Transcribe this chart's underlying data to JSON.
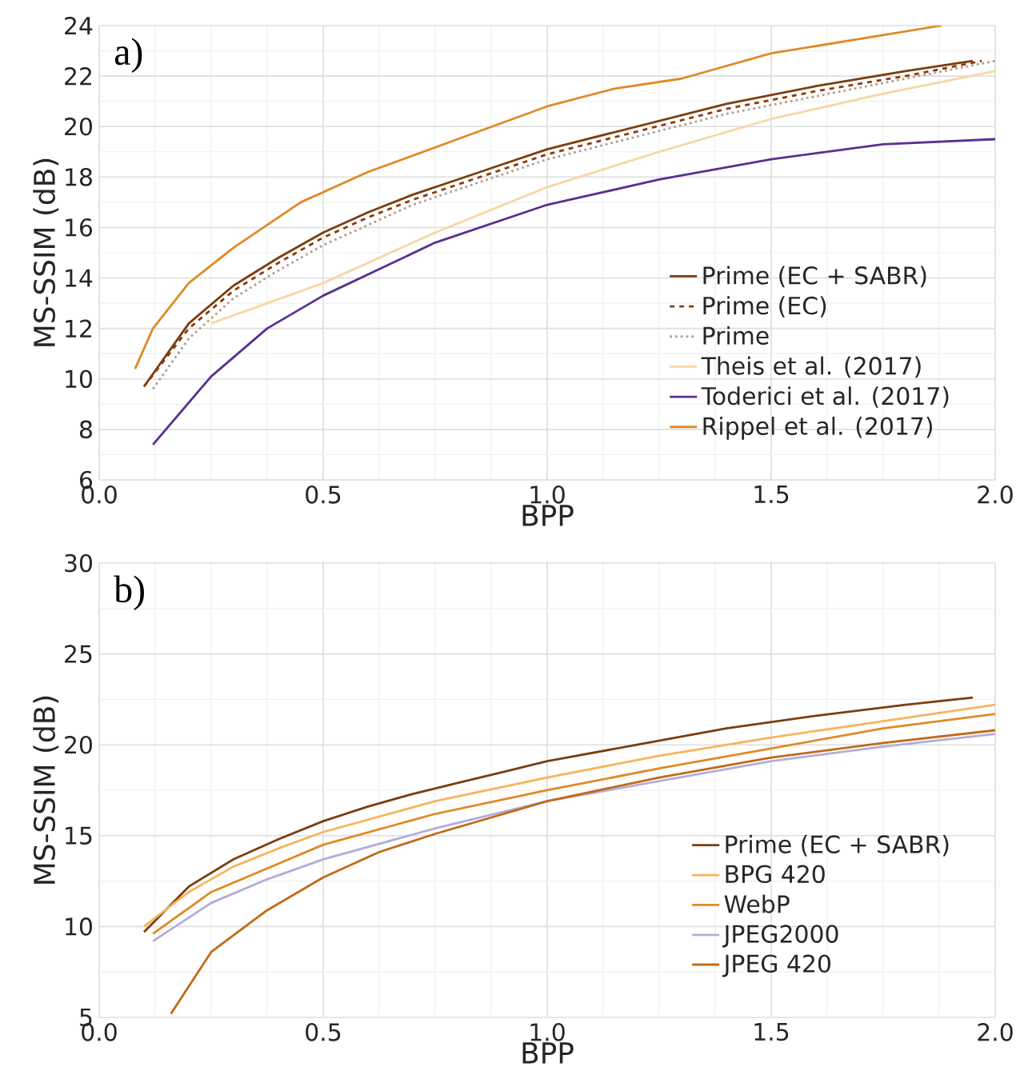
{
  "chart_data": [
    {
      "type": "line",
      "xlabel": "BPP",
      "ylabel": "MS-SSIM (dB)",
      "annotations": [
        "a)"
      ],
      "grid": true,
      "legend": "bottom right",
      "xlim": [
        0,
        2
      ],
      "ylim": [
        6,
        24
      ],
      "xticks": [
        {
          "value": 0,
          "label": "0.0"
        },
        {
          "value": 0.5,
          "label": "0.5"
        },
        {
          "value": 1,
          "label": "1.0"
        },
        {
          "value": 1.5,
          "label": "1.5"
        },
        {
          "value": 2,
          "label": "2.0"
        }
      ],
      "yticks": [
        6,
        8,
        10,
        12,
        14,
        16,
        18,
        20,
        22,
        24
      ],
      "series": [
        {
          "name": "Prime (EC + SABR)",
          "color": "#7a3e10",
          "line_style": "solid",
          "x": [
            0.1,
            0.2,
            0.3,
            0.4,
            0.5,
            0.6,
            0.7,
            0.8,
            0.9,
            1.0,
            1.2,
            1.4,
            1.6,
            1.8,
            1.95
          ],
          "values": [
            9.7,
            12.2,
            13.7,
            14.8,
            15.8,
            16.6,
            17.3,
            17.9,
            18.5,
            19.1,
            20.0,
            20.9,
            21.6,
            22.2,
            22.6
          ]
        },
        {
          "name": "Prime (EC)",
          "color": "#8b3a0f",
          "line_style": "dashed",
          "x": [
            0.1,
            0.2,
            0.3,
            0.4,
            0.5,
            0.6,
            0.7,
            0.8,
            0.9,
            1.0,
            1.2,
            1.4,
            1.6,
            1.8,
            1.97
          ],
          "values": [
            9.7,
            12.0,
            13.5,
            14.6,
            15.6,
            16.4,
            17.1,
            17.7,
            18.3,
            18.9,
            19.8,
            20.7,
            21.4,
            22.0,
            22.6
          ]
        },
        {
          "name": "Prime",
          "color": "#b0a090",
          "line_style": "dotted",
          "x": [
            0.12,
            0.2,
            0.3,
            0.4,
            0.5,
            0.6,
            0.7,
            0.8,
            0.9,
            1.0,
            1.2,
            1.4,
            1.6,
            1.8,
            2.0
          ],
          "values": [
            9.6,
            11.6,
            13.2,
            14.3,
            15.3,
            16.1,
            16.9,
            17.5,
            18.1,
            18.7,
            19.6,
            20.5,
            21.2,
            21.9,
            22.6
          ]
        },
        {
          "name": "Theis et al. (2017)",
          "color": "#f7d6a4",
          "line_style": "solid",
          "x": [
            0.25,
            0.5,
            0.75,
            1.0,
            1.25,
            1.5,
            1.75,
            2.0
          ],
          "values": [
            12.2,
            13.8,
            15.8,
            17.6,
            19.0,
            20.3,
            21.3,
            22.2
          ]
        },
        {
          "name": "Toderici et al. (2017)",
          "color": "#5b2f8f",
          "line_style": "solid",
          "x": [
            0.12,
            0.25,
            0.375,
            0.5,
            0.75,
            1.0,
            1.25,
            1.5,
            1.75,
            2.0
          ],
          "values": [
            7.4,
            10.1,
            12.0,
            13.3,
            15.4,
            16.9,
            17.9,
            18.7,
            19.3,
            19.5
          ]
        },
        {
          "name": "Rippel et al. (2017)",
          "color": "#e08a25",
          "line_style": "solid",
          "x": [
            0.08,
            0.12,
            0.2,
            0.3,
            0.45,
            0.6,
            0.8,
            1.0,
            1.15,
            1.3,
            1.5,
            1.88
          ],
          "values": [
            10.4,
            12.0,
            13.8,
            15.2,
            17.0,
            18.2,
            19.5,
            20.8,
            21.5,
            21.9,
            22.9,
            24.0
          ]
        }
      ]
    },
    {
      "type": "line",
      "xlabel": "BPP",
      "ylabel": "MS-SSIM (dB)",
      "annotations": [
        "b)"
      ],
      "grid": true,
      "legend": "bottom right",
      "xlim": [
        0,
        2
      ],
      "ylim": [
        5,
        30
      ],
      "xticks": [
        {
          "value": 0,
          "label": "0.0"
        },
        {
          "value": 0.5,
          "label": "0.5"
        },
        {
          "value": 1,
          "label": "1.0"
        },
        {
          "value": 1.5,
          "label": "1.5"
        },
        {
          "value": 2,
          "label": "2.0"
        }
      ],
      "yticks": [
        5,
        10,
        15,
        20,
        25,
        30
      ],
      "series": [
        {
          "name": "Prime (EC + SABR)",
          "color": "#7a3e10",
          "x": [
            0.1,
            0.2,
            0.3,
            0.4,
            0.5,
            0.6,
            0.7,
            0.8,
            0.9,
            1.0,
            1.2,
            1.4,
            1.6,
            1.8,
            1.95
          ],
          "values": [
            9.7,
            12.2,
            13.7,
            14.8,
            15.8,
            16.6,
            17.3,
            17.9,
            18.5,
            19.1,
            20.0,
            20.9,
            21.6,
            22.2,
            22.6
          ]
        },
        {
          "name": "BPG 420",
          "color": "#f5b55e",
          "x": [
            0.1,
            0.2,
            0.3,
            0.4,
            0.5,
            0.75,
            1.0,
            1.25,
            1.5,
            1.75,
            2.0
          ],
          "values": [
            10.0,
            11.9,
            13.3,
            14.3,
            15.2,
            16.9,
            18.2,
            19.4,
            20.4,
            21.3,
            22.2
          ]
        },
        {
          "name": "WebP",
          "color": "#e08a25",
          "x": [
            0.12,
            0.25,
            0.375,
            0.5,
            0.75,
            1.0,
            1.25,
            1.5,
            1.75,
            2.0
          ],
          "values": [
            9.6,
            11.9,
            13.2,
            14.5,
            16.2,
            17.5,
            18.7,
            19.8,
            20.9,
            21.7
          ]
        },
        {
          "name": "JPEG2000",
          "color": "#b4acd8",
          "x": [
            0.12,
            0.25,
            0.375,
            0.5,
            0.75,
            1.0,
            1.25,
            1.5,
            1.75,
            2.0
          ],
          "values": [
            9.2,
            11.3,
            12.6,
            13.7,
            15.4,
            16.9,
            18.0,
            19.1,
            19.9,
            20.6
          ]
        },
        {
          "name": "JPEG 420",
          "color": "#c06a1a",
          "x": [
            0.16,
            0.25,
            0.375,
            0.5,
            0.625,
            0.75,
            1.0,
            1.25,
            1.5,
            1.75,
            2.0
          ],
          "values": [
            5.2,
            8.6,
            10.9,
            12.7,
            14.1,
            15.1,
            16.9,
            18.2,
            19.3,
            20.1,
            20.8
          ]
        }
      ]
    }
  ]
}
